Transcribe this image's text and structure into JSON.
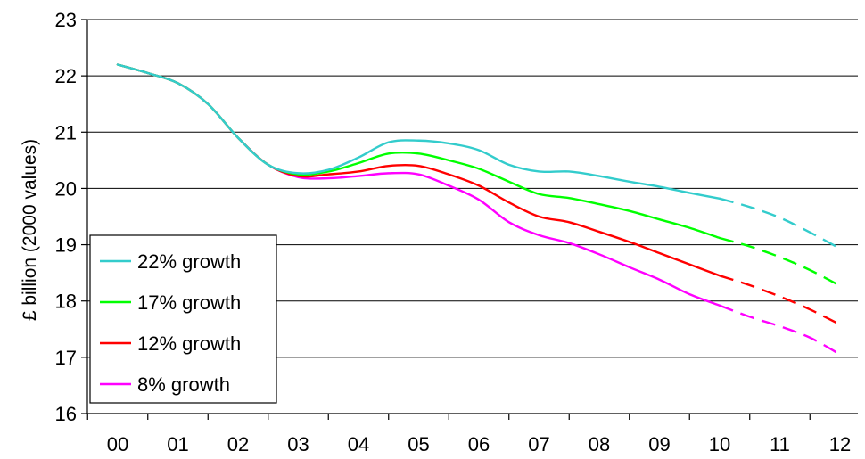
{
  "chart_data": {
    "type": "line",
    "title": "",
    "xlabel": "",
    "ylabel": "£ billion (2000 values)",
    "x_tick_labels": [
      "00",
      "01",
      "02",
      "03",
      "04",
      "05",
      "06",
      "07",
      "08",
      "09",
      "10",
      "11",
      "12"
    ],
    "xlim": [
      0,
      12
    ],
    "ylim": [
      16,
      23
    ],
    "y_ticks": [
      16,
      17,
      18,
      19,
      20,
      21,
      22,
      23
    ],
    "grid": "horizontal",
    "legend_position": "bottom-left",
    "projection_from_x": 10,
    "projection_style": "dashed",
    "x": [
      0,
      0.5,
      1,
      1.5,
      2,
      2.5,
      3,
      3.5,
      4,
      4.5,
      5,
      5.5,
      6,
      6.5,
      7,
      7.5,
      8,
      8.5,
      9,
      9.5,
      10,
      10.5,
      11,
      11.5,
      12
    ],
    "series": [
      {
        "name": "22% growth",
        "color": "#33CCCC",
        "values": [
          22.2,
          22.05,
          21.87,
          21.5,
          20.9,
          20.42,
          20.27,
          20.33,
          20.55,
          20.82,
          20.85,
          20.8,
          20.68,
          20.42,
          20.3,
          20.3,
          20.22,
          20.12,
          20.03,
          19.92,
          19.82,
          19.67,
          19.48,
          19.22,
          18.93
        ]
      },
      {
        "name": "17% growth",
        "color": "#00FF00",
        "values": [
          22.2,
          22.05,
          21.87,
          21.5,
          20.9,
          20.42,
          20.25,
          20.3,
          20.45,
          20.62,
          20.62,
          20.5,
          20.35,
          20.12,
          19.9,
          19.83,
          19.72,
          19.6,
          19.45,
          19.3,
          19.12,
          18.97,
          18.78,
          18.55,
          18.27
        ]
      },
      {
        "name": "12% growth",
        "color": "#FF0000",
        "values": [
          22.2,
          22.05,
          21.87,
          21.5,
          20.9,
          20.42,
          20.22,
          20.25,
          20.3,
          20.4,
          20.4,
          20.25,
          20.05,
          19.75,
          19.5,
          19.4,
          19.23,
          19.05,
          18.85,
          18.65,
          18.45,
          18.28,
          18.08,
          17.85,
          17.58
        ]
      },
      {
        "name": "8% growth",
        "color": "#FF00FF",
        "values": [
          22.2,
          22.05,
          21.87,
          21.5,
          20.9,
          20.42,
          20.2,
          20.18,
          20.22,
          20.27,
          20.25,
          20.05,
          19.8,
          19.4,
          19.17,
          19.03,
          18.83,
          18.6,
          18.38,
          18.12,
          17.92,
          17.72,
          17.55,
          17.35,
          17.05
        ]
      }
    ]
  }
}
